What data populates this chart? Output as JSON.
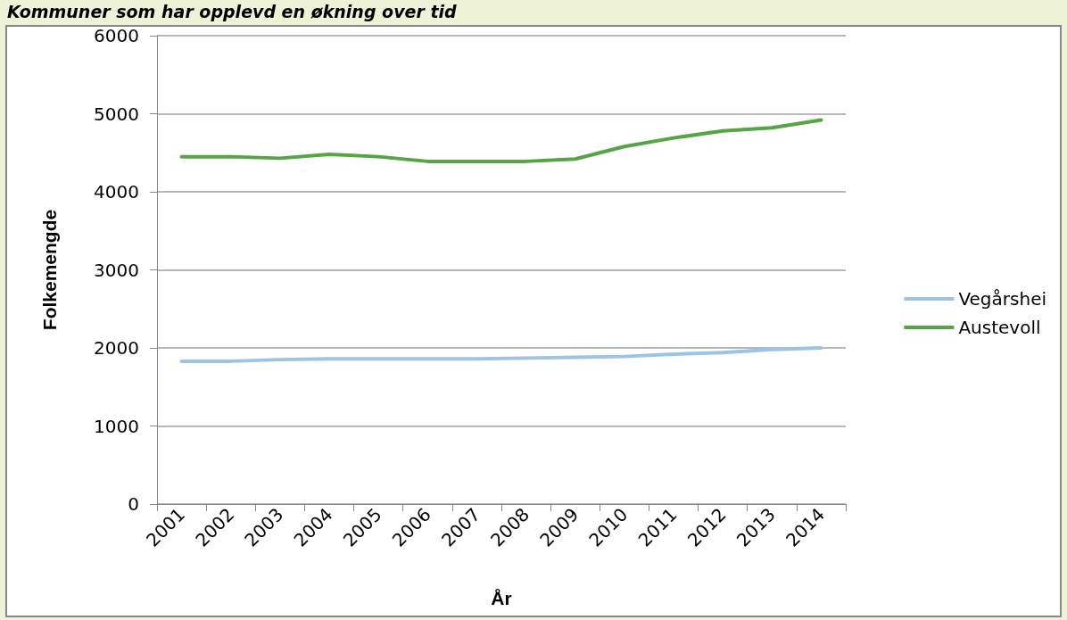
{
  "chart_data": {
    "type": "line",
    "title": "Kommuner som har opplevd en økning over tid",
    "xlabel": "År",
    "ylabel": "Folkemengde",
    "categories": [
      "2001",
      "2002",
      "2003",
      "2004",
      "2005",
      "2006",
      "2007",
      "2008",
      "2009",
      "2010",
      "2011",
      "2012",
      "2013",
      "2014"
    ],
    "series": [
      {
        "name": "Vegårshei",
        "color": "#9dc3e6",
        "values": [
          1830,
          1830,
          1850,
          1860,
          1860,
          1860,
          1860,
          1870,
          1880,
          1890,
          1920,
          1940,
          1980,
          2000
        ]
      },
      {
        "name": "Austevoll",
        "color": "#55a545",
        "values": [
          4450,
          4450,
          4430,
          4480,
          4450,
          4390,
          4390,
          4390,
          4420,
          4580,
          4690,
          4780,
          4820,
          4920
        ]
      }
    ],
    "ylim": [
      0,
      6000
    ],
    "yticks": [
      0,
      1000,
      2000,
      3000,
      4000,
      5000,
      6000
    ],
    "grid": "y",
    "legend": "right",
    "marker": "none",
    "line_style": "solid"
  }
}
